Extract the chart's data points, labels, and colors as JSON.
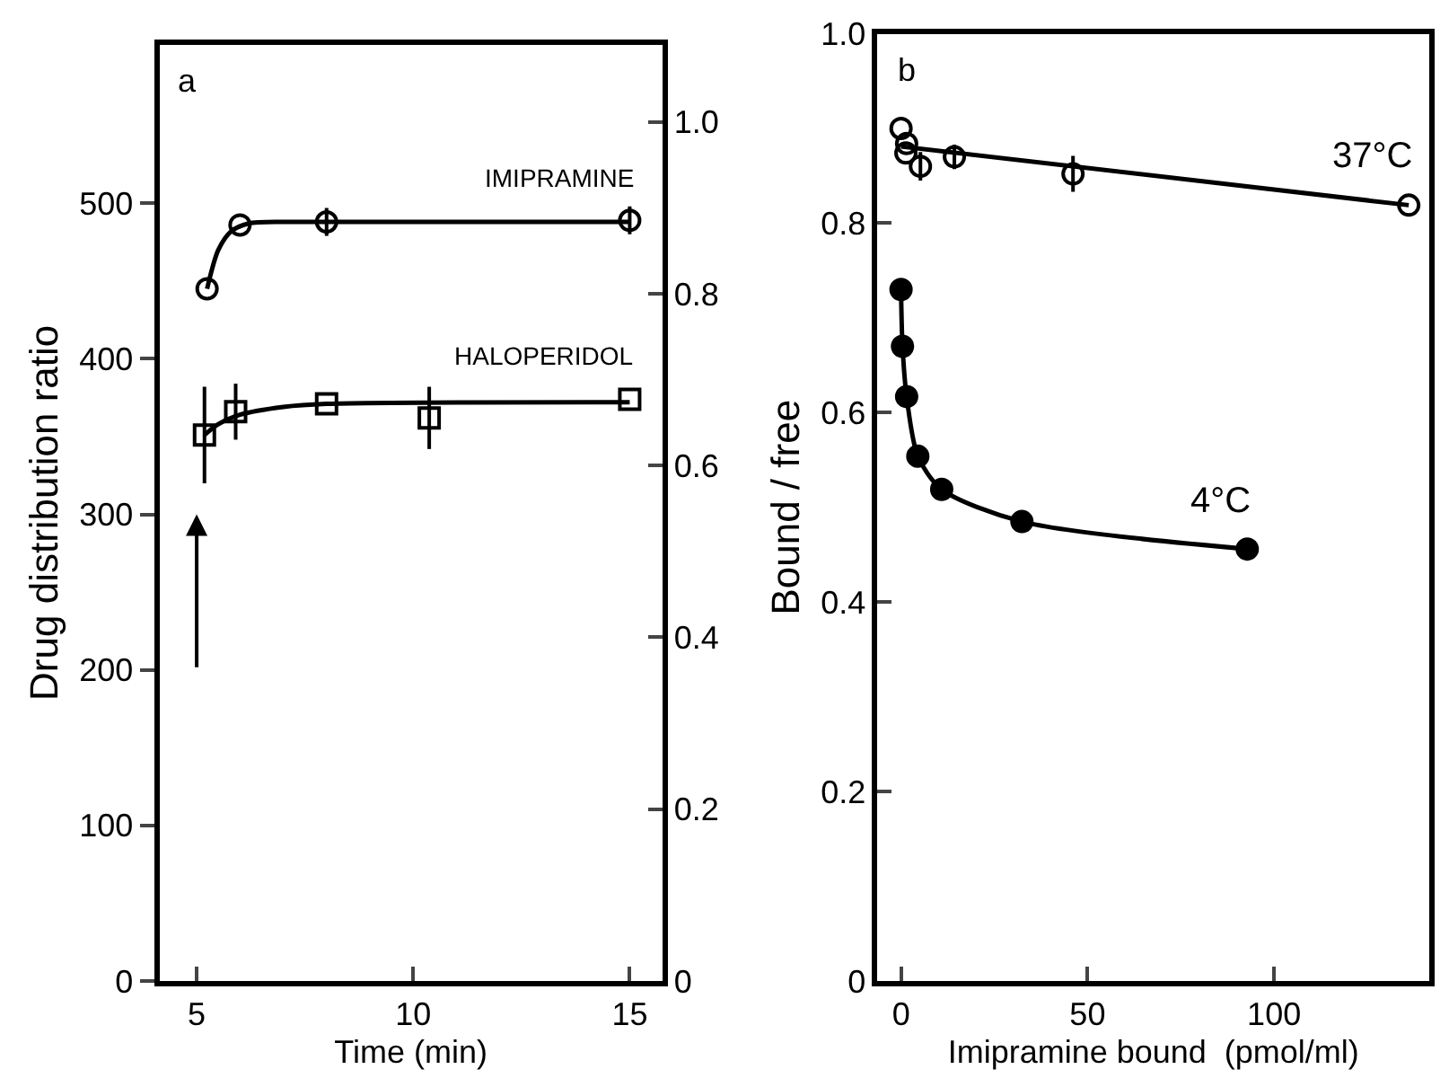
{
  "chart_data": [
    {
      "type": "scatter",
      "title": "a",
      "xlabel": "Time (min)",
      "ylabel": "Drug distribution ratio",
      "xlim": [
        4.14,
        15.75
      ],
      "xticks": [
        5,
        10,
        15
      ],
      "ylim": [
        0,
        602
      ],
      "yticks": [
        0,
        100,
        200,
        300,
        400,
        500
      ],
      "y2lim": [
        0,
        1.09
      ],
      "y2ticks": [
        0,
        0.2,
        0.4,
        0.6,
        0.8,
        {
          "value": 1,
          "label": "1.0"
        }
      ],
      "grid": false,
      "legend": false,
      "series": [
        {
          "name": "IMIPRAMINE",
          "marker": "circle",
          "color": "#000000",
          "x": [
            5.24,
            6.0,
            8.0,
            15.0
          ],
          "values": [
            445,
            486,
            488,
            489
          ],
          "errors": [
            null,
            null,
            9,
            9
          ]
        },
        {
          "type": "line",
          "marker": "none",
          "line_style": "solid",
          "color": "#000000",
          "x": [
            5.24,
            5.5,
            5.8,
            6.2,
            7,
            8,
            15
          ],
          "values": [
            445,
            470,
            482,
            487,
            488,
            488,
            488
          ]
        },
        {
          "name": "HALOPERIDOL",
          "marker": "square",
          "color": "#000000",
          "x": [
            5.18,
            5.9,
            8.0,
            10.37,
            15.0
          ],
          "values": [
            351,
            366,
            371,
            362,
            374
          ],
          "errors": [
            31,
            18,
            null,
            20,
            null
          ]
        },
        {
          "type": "line",
          "marker": "none",
          "line_style": "solid",
          "color": "#000000",
          "x": [
            5.18,
            5.5,
            6,
            7,
            8,
            15
          ],
          "values": [
            351,
            358,
            364,
            369,
            371,
            372
          ]
        }
      ]
    },
    {
      "type": "scatter",
      "title": "b",
      "xlabel": "Imipramine bound  (pmol/ml)",
      "ylabel": "Bound / free",
      "xlim": [
        -6.3,
        141.6
      ],
      "xticks": [
        0,
        50,
        100
      ],
      "ylim": [
        0,
        1.0
      ],
      "yticks": [
        0,
        0.2,
        0.4,
        0.6,
        0.8,
        {
          "value": 1,
          "label": "1.0"
        }
      ],
      "grid": false,
      "legend": false,
      "series": [
        {
          "name": "37°C",
          "marker": "circle",
          "color": "#000000",
          "x": [
            0,
            1.5,
            1.3,
            5.2,
            14.3,
            46.1,
            136.1
          ],
          "values": [
            0.9,
            0.884,
            0.874,
            0.86,
            0.87,
            0.852,
            0.819
          ],
          "errors": [
            null,
            null,
            null,
            0.015,
            0.013,
            0.019,
            null
          ]
        },
        {
          "type": "line",
          "marker": "none",
          "line_style": "solid",
          "color": "#000000",
          "x": [
            0,
            136.1
          ],
          "values": [
            0.881,
            0.819
          ]
        },
        {
          "name": "4°C",
          "type": "line",
          "marker": "circle",
          "line_style": "solid",
          "color": "#000000",
          "x": [
            0,
            0.4,
            1.5,
            4.5,
            10.9,
            32.4,
            92.8
          ],
          "values": [
            0.73,
            0.67,
            0.617,
            0.554,
            0.519,
            0.485,
            0.456
          ]
        }
      ]
    }
  ]
}
